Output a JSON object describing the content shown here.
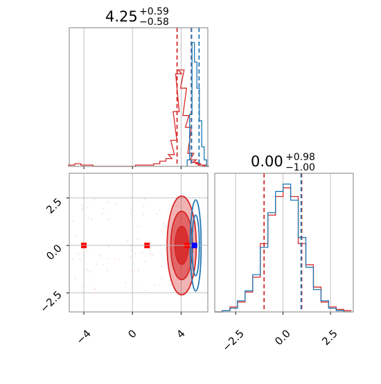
{
  "colors": {
    "red": "#d62728",
    "blue": "#1f77b4",
    "marker_blue": "#0000ff",
    "marker_red": "#ff0000"
  },
  "titles": {
    "top_main": "4.25",
    "top_sup": "+0.59",
    "top_sub": "−0.58",
    "right_main": "0.00",
    "right_sup": "+0.98",
    "right_sub": "−1.00"
  },
  "chart_data": [
    {
      "type": "histogram",
      "panel": "top-left (marginal of parameter 1)",
      "xlim": [
        -5.2,
        6.2
      ],
      "title": "4.25 (+0.59 / −0.58)",
      "series": [
        {
          "name": "",
          "color": "#d62728",
          "x": [
            -5.0,
            -4.5,
            -4.0,
            -3.5,
            -3.0,
            -2.5,
            -2.0,
            -1.5,
            -1.0,
            -0.5,
            0.0,
            0.5,
            1.0,
            1.5,
            2.0,
            2.5,
            3.0,
            3.2,
            3.4,
            3.6,
            3.8,
            4.0,
            4.2,
            4.4,
            4.6,
            4.8,
            5.0,
            5.2,
            5.4,
            5.6,
            5.8,
            6.0
          ],
          "counts": [
            0.01,
            0.02,
            0.01,
            0.01,
            0,
            0,
            0,
            0,
            0,
            0,
            0,
            0.01,
            0.01,
            0.01,
            0.02,
            0.04,
            0.06,
            0.09,
            0.2,
            0.42,
            0.71,
            0.74,
            0.6,
            0.39,
            0.3,
            0.1,
            0.05,
            0.03,
            0.02,
            0.01,
            0.01,
            0.0
          ]
        },
        {
          "name": "",
          "color": "#1f77b4",
          "x": [
            4.6,
            4.8,
            5.0,
            5.2,
            5.4,
            5.6,
            5.8,
            6.0,
            6.2
          ],
          "counts": [
            0.05,
            0.4,
            0.95,
            0.8,
            0.6,
            0.35,
            0.15,
            0.05,
            0.0
          ]
        }
      ],
      "vlines": [
        {
          "x": 3.67,
          "color": "#d62728"
        },
        {
          "x": 4.84,
          "color": "#d62728"
        },
        {
          "x": 4.86,
          "color": "#1f77b4"
        },
        {
          "x": 5.48,
          "color": "#1f77b4"
        }
      ]
    },
    {
      "type": "scatter",
      "panel": "bottom-left (2D contour, parameter 1 vs parameter 2)",
      "xlim": [
        -5.2,
        6.2
      ],
      "ylim": [
        -3.5,
        3.8
      ],
      "xticks": [
        "−4",
        "0",
        "4"
      ],
      "xtick_values": [
        -4,
        0,
        4
      ],
      "yticks": [
        "2.5",
        "0.0",
        "−2.5"
      ],
      "ytick_values": [
        2.5,
        0.0,
        -2.5
      ],
      "markers": [
        {
          "x": -4.0,
          "y": 0.0,
          "color": "#ff0000",
          "shape": "square"
        },
        {
          "x": 1.2,
          "y": 0.0,
          "color": "#ff0000",
          "shape": "square"
        },
        {
          "x": 4.5,
          "y": 0.0,
          "color": "#ff0000",
          "shape": "square"
        },
        {
          "x": 5.1,
          "y": 0.0,
          "color": "#0000ff",
          "shape": "square"
        }
      ],
      "contours": [
        {
          "color": "#d62728",
          "center": [
            4.05,
            0.0
          ],
          "half_widths": [
            [
              1.2,
              2.6
            ],
            [
              0.9,
              1.8
            ],
            [
              0.55,
              1.0
            ]
          ]
        },
        {
          "color": "#1f77b4",
          "center": [
            5.2,
            0.0
          ],
          "half_widths": [
            [
              0.45,
              2.4
            ],
            [
              0.3,
              1.6
            ]
          ]
        }
      ]
    },
    {
      "type": "histogram",
      "panel": "bottom-right (marginal of parameter 2)",
      "xlim": [
        -3.6,
        3.7
      ],
      "xticks": [
        "−2.5",
        "0.0",
        "2.5"
      ],
      "xtick_values": [
        -2.5,
        0.0,
        2.5
      ],
      "title": "0.00 (+0.98 / −1.00)",
      "series": [
        {
          "name": "",
          "color": "#d62728",
          "x": [
            -3.4,
            -3.0,
            -2.6,
            -2.2,
            -1.8,
            -1.4,
            -1.0,
            -0.6,
            -0.2,
            0.2,
            0.6,
            1.0,
            1.4,
            1.8,
            2.2,
            2.6,
            3.0,
            3.4
          ],
          "counts": [
            0.0,
            0.01,
            0.04,
            0.08,
            0.16,
            0.28,
            0.55,
            0.78,
            0.93,
            1.0,
            0.93,
            0.55,
            0.38,
            0.2,
            0.08,
            0.04,
            0.02,
            0.01
          ]
        },
        {
          "name": "",
          "color": "#1f77b4",
          "x": [
            -3.4,
            -3.0,
            -2.6,
            -2.2,
            -1.8,
            -1.4,
            -1.0,
            -0.6,
            -0.2,
            0.2,
            0.6,
            1.0,
            1.4,
            1.8,
            2.2,
            2.6,
            3.0,
            3.4
          ],
          "counts": [
            0.0,
            0.01,
            0.03,
            0.09,
            0.17,
            0.3,
            0.52,
            0.8,
            0.97,
            1.03,
            0.9,
            0.6,
            0.36,
            0.18,
            0.09,
            0.03,
            0.01,
            0.0
          ]
        }
      ],
      "vlines": [
        {
          "x": -1.0,
          "color": "#d62728"
        },
        {
          "x": 0.98,
          "color": "#d62728"
        },
        {
          "x": 0.95,
          "color": "#1f77b4"
        }
      ]
    }
  ]
}
